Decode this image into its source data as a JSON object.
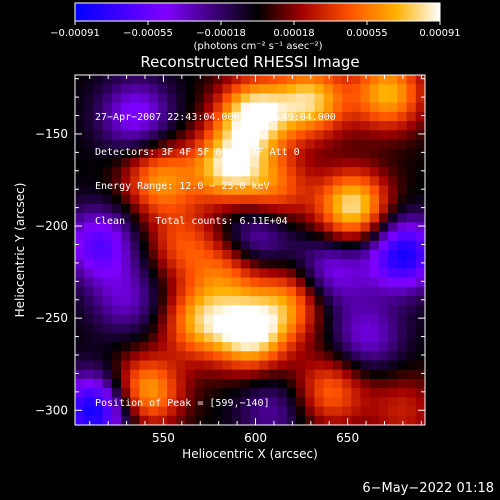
{
  "chart_data": {
    "type": "heatmap",
    "title": "Reconstructed RHESSI Image",
    "xlabel": "Heliocentric X (arcsec)",
    "ylabel": "Heliocentric Y (arcsec)",
    "xlim": [
      502,
      692
    ],
    "ylim": [
      -308,
      -118
    ],
    "x_ticks": [
      "550",
      "600",
      "650"
    ],
    "y_ticks": [
      "−150",
      "−200",
      "−250",
      "−300"
    ],
    "colorbar": {
      "unit": "(photons cm⁻² s⁻¹ asec⁻²)",
      "range": [
        -0.00091,
        0.00091
      ],
      "tick_labels": [
        "−0.00091",
        "−0.00055",
        "−0.00018",
        "0.00018",
        "0.00055",
        "0.00091"
      ],
      "colors": [
        "#0000ff",
        "#7f00ff",
        "#000000",
        "#a00000",
        "#ff5000",
        "#ffb000",
        "#ffffff"
      ]
    },
    "annotations": [
      "27−Apr−2007 22:43:04.000 to 22:49:04.000",
      "Detectors: 3F 4F 5F 6F 7F 8F Att 0",
      "Energy Range: 12.0 − 25.0 keV",
      "Clean     Total counts: 6.11E+04"
    ],
    "peak_label": "Position of Peak = [599,−140]",
    "sources": [
      {
        "x": 599,
        "y": -140,
        "v": 0.00091
      },
      {
        "x": 630,
        "y": -132,
        "v": 0.00075
      },
      {
        "x": 672,
        "y": -128,
        "v": 0.0007
      },
      {
        "x": 585,
        "y": -168,
        "v": 0.0008
      },
      {
        "x": 548,
        "y": -175,
        "v": 0.0006
      },
      {
        "x": 653,
        "y": -190,
        "v": 0.00085
      },
      {
        "x": 610,
        "y": -180,
        "v": 0.0005
      },
      {
        "x": 598,
        "y": -258,
        "v": 0.0009
      },
      {
        "x": 620,
        "y": -240,
        "v": 0.00055
      },
      {
        "x": 570,
        "y": -252,
        "v": 0.00065
      },
      {
        "x": 540,
        "y": -290,
        "v": 0.0007
      },
      {
        "x": 585,
        "y": -225,
        "v": 0.00045
      },
      {
        "x": 640,
        "y": -290,
        "v": 0.0005
      },
      {
        "x": 560,
        "y": -210,
        "v": 0.0004
      },
      {
        "x": 680,
        "y": -300,
        "v": 0.0003
      },
      {
        "x": 513,
        "y": -300,
        "v": -0.00091
      },
      {
        "x": 515,
        "y": -210,
        "v": -0.0006
      },
      {
        "x": 535,
        "y": -140,
        "v": -0.0005
      },
      {
        "x": 680,
        "y": -215,
        "v": -0.00085
      },
      {
        "x": 640,
        "y": -225,
        "v": -0.0005
      },
      {
        "x": 660,
        "y": -260,
        "v": -0.0004
      },
      {
        "x": 600,
        "y": -205,
        "v": -0.00045
      },
      {
        "x": 610,
        "y": -300,
        "v": -0.0003
      },
      {
        "x": 530,
        "y": -240,
        "v": -0.00035
      }
    ]
  },
  "footer": {
    "date_stamp": "6−May−2022 01:18"
  }
}
